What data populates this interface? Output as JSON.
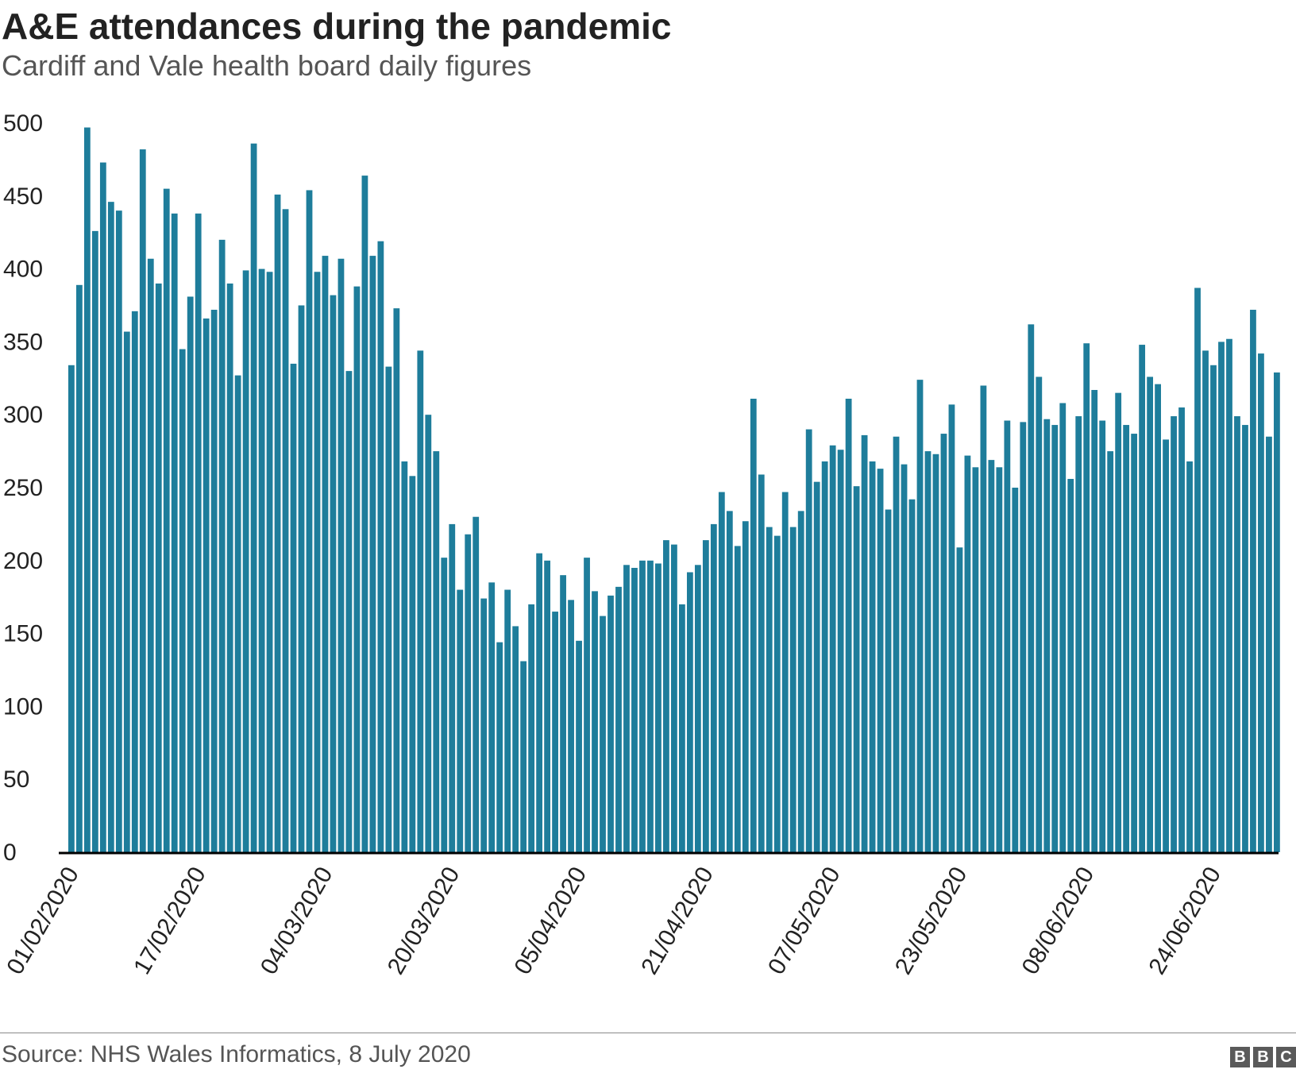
{
  "header": {
    "title": "A&E attendances during the pandemic",
    "subtitle": "Cardiff and Vale health board daily figures"
  },
  "footer": {
    "source": "Source: NHS Wales Informatics, 8 July 2020",
    "logo_letters": [
      "B",
      "B",
      "C"
    ]
  },
  "colors": {
    "bar": "#1e7d9b",
    "axis": "#000000",
    "text": "#222222"
  },
  "chart_data": {
    "type": "bar",
    "title": "A&E attendances during the pandemic",
    "subtitle": "Cardiff and Vale health board daily figures",
    "xlabel": "",
    "ylabel": "",
    "ylim": [
      0,
      500
    ],
    "yticks": [
      0,
      50,
      100,
      150,
      200,
      250,
      300,
      350,
      400,
      450,
      500
    ],
    "grid": false,
    "x_start": "01/02/2020",
    "x_end": "02/07/2020",
    "x_tick_labels": [
      "01/02/2020",
      "17/02/2020",
      "04/03/2020",
      "20/03/2020",
      "05/04/2020",
      "21/04/2020",
      "07/05/2020",
      "23/05/2020",
      "08/06/2020",
      "24/06/2020"
    ],
    "values": [
      334,
      389,
      497,
      426,
      473,
      446,
      440,
      357,
      371,
      482,
      407,
      390,
      455,
      438,
      345,
      381,
      438,
      366,
      372,
      420,
      390,
      327,
      399,
      486,
      400,
      398,
      451,
      441,
      335,
      375,
      454,
      398,
      409,
      382,
      407,
      330,
      388,
      464,
      409,
      419,
      333,
      373,
      268,
      258,
      344,
      300,
      275,
      202,
      225,
      180,
      218,
      230,
      174,
      185,
      144,
      180,
      155,
      131,
      170,
      205,
      200,
      165,
      190,
      173,
      145,
      202,
      179,
      162,
      176,
      182,
      197,
      195,
      200,
      200,
      198,
      214,
      211,
      170,
      192,
      197,
      214,
      225,
      247,
      234,
      210,
      227,
      311,
      259,
      223,
      217,
      247,
      223,
      234,
      290,
      254,
      268,
      279,
      276,
      311,
      251,
      286,
      268,
      263,
      235,
      285,
      266,
      242,
      324,
      275,
      273,
      287,
      307,
      209,
      272,
      264,
      320,
      269,
      264,
      296,
      250,
      295,
      362,
      326,
      297,
      293,
      308,
      256,
      299,
      349,
      317,
      296,
      275,
      315,
      293,
      287,
      348,
      326,
      321,
      283,
      299,
      305,
      268,
      387,
      344,
      334,
      350,
      352,
      299,
      293,
      372,
      342,
      285,
      329
    ]
  }
}
